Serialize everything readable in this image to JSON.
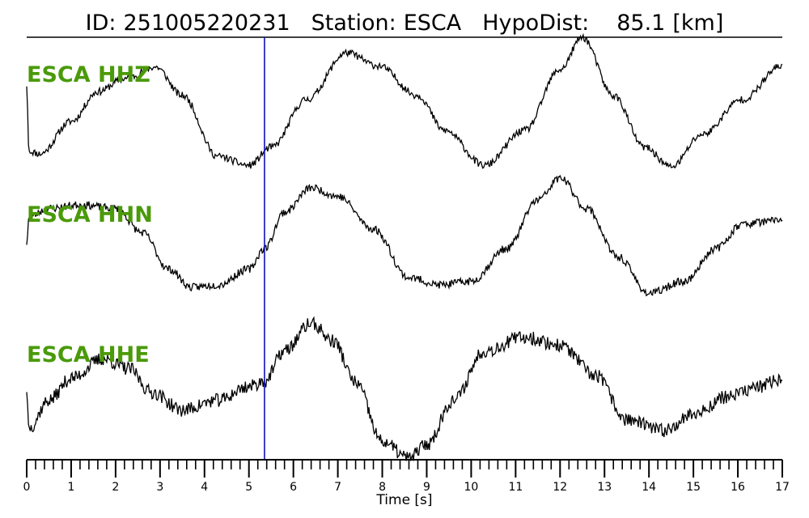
{
  "title": {
    "id_label": "ID:",
    "id_value": "251005220231",
    "station_label": "Station:",
    "station_value": "ESCA",
    "dist_label": "HypoDist:",
    "dist_value": "85.1",
    "dist_unit": "[km]"
  },
  "colors": {
    "trace": "#000000",
    "label": "#4a9a0a",
    "pick": "#1010c0"
  },
  "chart_data": {
    "type": "line",
    "title": "ID: 251005220231   Station: ESCA   HypoDist:    85.1 [km]",
    "xlabel": "Time [s]",
    "xlim": [
      0,
      17
    ],
    "xticks": [
      0,
      1,
      2,
      3,
      4,
      5,
      6,
      7,
      8,
      9,
      10,
      11,
      12,
      13,
      14,
      15,
      16,
      17
    ],
    "minor_tick_step": 0.2,
    "grid": false,
    "pick_time": 5.35,
    "series": [
      {
        "name": "ESCA HHZ",
        "noise": 0.028,
        "seed": 11,
        "x": [
          0,
          0.05,
          0.3,
          1.0,
          1.6,
          2.2,
          2.9,
          3.5,
          4.3,
          5.0,
          5.5,
          6.3,
          7.2,
          7.9,
          8.8,
          9.4,
          10.3,
          11.2,
          12.0,
          12.5,
          13.2,
          13.9,
          14.5,
          15.2,
          16.1,
          17.0
        ],
        "y": [
          0.62,
          0.12,
          0.1,
          0.35,
          0.58,
          0.68,
          0.77,
          0.55,
          0.08,
          0.01,
          0.15,
          0.52,
          0.88,
          0.78,
          0.55,
          0.28,
          0.01,
          0.28,
          0.75,
          1.0,
          0.55,
          0.15,
          0.0,
          0.25,
          0.52,
          0.78
        ]
      },
      {
        "name": "ESCA HHN",
        "noise": 0.032,
        "seed": 23,
        "x": [
          0,
          0.05,
          0.5,
          1.2,
          2.0,
          2.6,
          3.2,
          3.7,
          4.3,
          5.0,
          5.35,
          5.8,
          6.4,
          7.0,
          7.8,
          8.6,
          9.3,
          10.0,
          10.8,
          11.5,
          12.0,
          12.6,
          13.3,
          14.0,
          14.8,
          15.5,
          16.1,
          16.6,
          17.0
        ],
        "y": [
          0.45,
          0.68,
          0.75,
          0.78,
          0.75,
          0.55,
          0.25,
          0.1,
          0.12,
          0.25,
          0.42,
          0.72,
          0.92,
          0.85,
          0.58,
          0.18,
          0.12,
          0.15,
          0.42,
          0.82,
          1.0,
          0.75,
          0.35,
          0.05,
          0.15,
          0.42,
          0.62,
          0.64,
          0.66
        ]
      },
      {
        "name": "ESCA HHE",
        "noise": 0.05,
        "seed": 37,
        "x": [
          0,
          0.05,
          0.5,
          1.0,
          1.7,
          2.3,
          2.8,
          3.5,
          4.3,
          5.0,
          5.35,
          5.8,
          6.4,
          6.9,
          7.4,
          8.0,
          8.6,
          9.0,
          9.6,
          10.3,
          11.2,
          12.0,
          12.8,
          13.5,
          14.3,
          15.0,
          15.8,
          16.5,
          17.0
        ],
        "y": [
          0.48,
          0.22,
          0.42,
          0.58,
          0.72,
          0.65,
          0.48,
          0.35,
          0.42,
          0.52,
          0.56,
          0.78,
          0.98,
          0.85,
          0.55,
          0.12,
          0.0,
          0.1,
          0.42,
          0.78,
          0.88,
          0.82,
          0.6,
          0.28,
          0.2,
          0.32,
          0.45,
          0.52,
          0.58
        ]
      }
    ]
  }
}
